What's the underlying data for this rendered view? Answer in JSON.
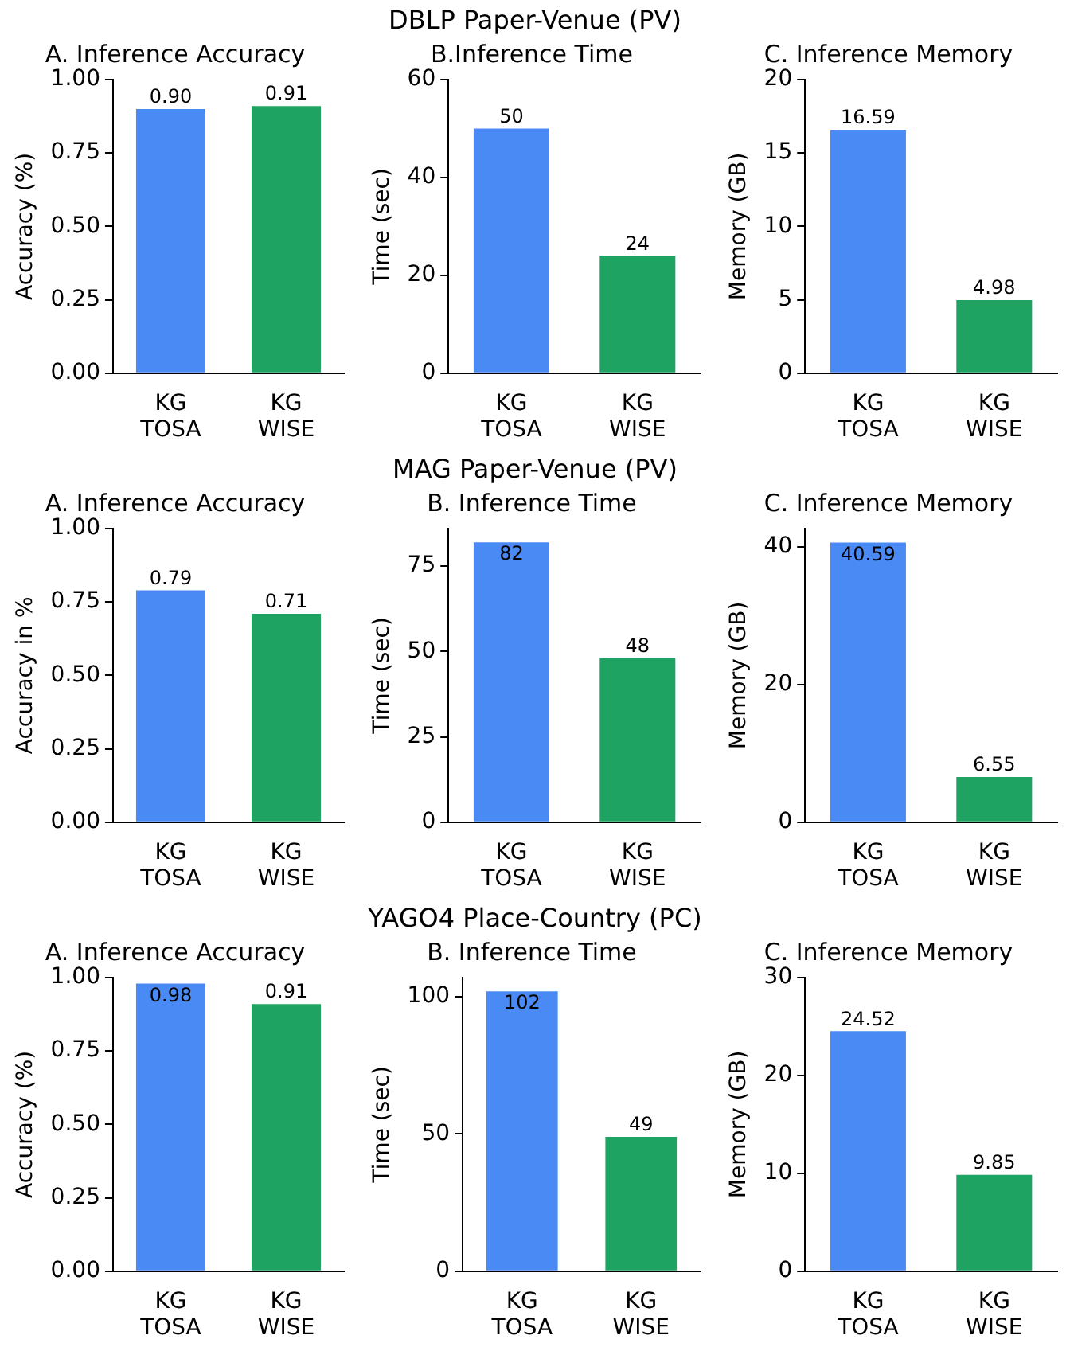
{
  "chart_data": [
    {
      "type": "bar",
      "annotations": [
        "DBLP Paper-Venue (PV)"
      ],
      "title": "A. Inference Accuracy",
      "ylabel": "Accuracy (%)",
      "categories": [
        "KG\nTOSA",
        "KG\nWISE"
      ],
      "values": [
        0.9,
        0.91
      ],
      "value_labels": [
        "0.90",
        "0.91"
      ],
      "colors": [
        "#4a8af4",
        "#1ea362"
      ],
      "ylim": [
        0,
        1
      ],
      "yticks": [
        {
          "value": 0,
          "label": "0.00"
        },
        {
          "value": 0.25,
          "label": "0.25"
        },
        {
          "value": 0.5,
          "label": "0.50"
        },
        {
          "value": 0.75,
          "label": "0.75"
        },
        {
          "value": 1,
          "label": "1.00"
        }
      ]
    },
    {
      "type": "bar",
      "title": "B.Inference Time",
      "ylabel": "Time (sec)",
      "categories": [
        "KG\nTOSA",
        "KG\nWISE"
      ],
      "values": [
        50,
        24
      ],
      "value_labels": [
        "50",
        "24"
      ],
      "colors": [
        "#4a8af4",
        "#1ea362"
      ],
      "ylim": [
        0,
        60
      ],
      "yticks": [
        0,
        20,
        40,
        60
      ]
    },
    {
      "type": "bar",
      "title": "C. Inference Memory",
      "ylabel": "Memory (GB)",
      "categories": [
        "KG\nTOSA",
        "KG\nWISE"
      ],
      "values": [
        16.59,
        4.98
      ],
      "value_labels": [
        "16.59",
        "4.98"
      ],
      "colors": [
        "#4a8af4",
        "#1ea362"
      ],
      "ylim": [
        0,
        20
      ],
      "yticks": [
        0,
        5,
        10,
        15,
        20
      ]
    },
    {
      "type": "bar",
      "annotations": [
        "MAG Paper-Venue (PV)"
      ],
      "title": "A. Inference Accuracy",
      "ylabel": "Accuracy in %",
      "categories": [
        "KG\nTOSA",
        "KG\nWISE"
      ],
      "values": [
        0.79,
        0.71
      ],
      "value_labels": [
        "0.79",
        "0.71"
      ],
      "colors": [
        "#4a8af4",
        "#1ea362"
      ],
      "ylim": [
        0,
        1
      ],
      "yticks": [
        {
          "value": 0,
          "label": "0.00"
        },
        {
          "value": 0.25,
          "label": "0.25"
        },
        {
          "value": 0.5,
          "label": "0.50"
        },
        {
          "value": 0.75,
          "label": "0.75"
        },
        {
          "value": 1,
          "label": "1.00"
        }
      ]
    },
    {
      "type": "bar",
      "title": "B. Inference Time",
      "ylabel": "Time (sec)",
      "categories": [
        "KG\nTOSA",
        "KG\nWISE"
      ],
      "values": [
        82,
        48
      ],
      "value_labels": [
        "82",
        "48"
      ],
      "colors": [
        "#4a8af4",
        "#1ea362"
      ],
      "ylim": [
        0,
        86
      ],
      "yticks": [
        0,
        25,
        50,
        75
      ]
    },
    {
      "type": "bar",
      "title": "C. Inference Memory",
      "ylabel": "Memory (GB)",
      "categories": [
        "KG\nTOSA",
        "KG\nWISE"
      ],
      "values": [
        40.59,
        6.55
      ],
      "value_labels": [
        "40.59",
        "6.55"
      ],
      "colors": [
        "#4a8af4",
        "#1ea362"
      ],
      "ylim": [
        0,
        42.6
      ],
      "yticks": [
        0,
        20,
        40
      ]
    },
    {
      "type": "bar",
      "annotations": [
        "YAGO4 Place-Country (PC)"
      ],
      "title": "A. Inference Accuracy",
      "ylabel": "Accuracy (%)",
      "categories": [
        "KG\nTOSA",
        "KG\nWISE"
      ],
      "values": [
        0.98,
        0.91
      ],
      "value_labels": [
        "0.98",
        "0.91"
      ],
      "colors": [
        "#4a8af4",
        "#1ea362"
      ],
      "ylim": [
        0,
        1
      ],
      "yticks": [
        {
          "value": 0,
          "label": "0.00"
        },
        {
          "value": 0.25,
          "label": "0.25"
        },
        {
          "value": 0.5,
          "label": "0.50"
        },
        {
          "value": 0.75,
          "label": "0.75"
        },
        {
          "value": 1,
          "label": "1.00"
        }
      ]
    },
    {
      "type": "bar",
      "title": "B. Inference Time",
      "ylabel": "Time (sec)",
      "categories": [
        "KG\nTOSA",
        "KG\nWISE"
      ],
      "values": [
        102,
        49
      ],
      "value_labels": [
        "102",
        "49"
      ],
      "colors": [
        "#4a8af4",
        "#1ea362"
      ],
      "ylim": [
        0,
        107
      ],
      "yticks": [
        0,
        50,
        100
      ]
    },
    {
      "type": "bar",
      "title": "C. Inference Memory",
      "ylabel": "Memory (GB)",
      "categories": [
        "KG\nTOSA",
        "KG\nWISE"
      ],
      "values": [
        24.52,
        9.85
      ],
      "value_labels": [
        "24.52",
        "9.85"
      ],
      "colors": [
        "#4a8af4",
        "#1ea362"
      ],
      "ylim": [
        0,
        30
      ],
      "yticks": [
        0,
        10,
        20,
        30
      ]
    }
  ]
}
